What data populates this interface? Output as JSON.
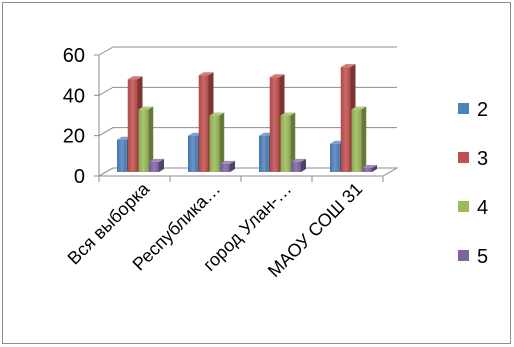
{
  "chart_data": {
    "type": "bar",
    "style": "3d-clustered-column",
    "categories": [
      "Вся выборка",
      "Республика…",
      "город Улан-…",
      "МАОУ СОШ 31"
    ],
    "series": [
      {
        "name": "2",
        "color": "#4f81bd",
        "values": [
          16,
          18,
          18,
          14
        ]
      },
      {
        "name": "3",
        "color": "#c0504d",
        "values": [
          46,
          48,
          47,
          52
        ]
      },
      {
        "name": "4",
        "color": "#9bbb59",
        "values": [
          31,
          28,
          28,
          31
        ]
      },
      {
        "name": "5",
        "color": "#8064a2",
        "values": [
          5,
          4,
          5,
          2
        ]
      }
    ],
    "yticks": [
      "0",
      "20",
      "40",
      "60"
    ],
    "ylim": [
      0,
      60
    ],
    "grid": true,
    "legend_position": "right"
  }
}
